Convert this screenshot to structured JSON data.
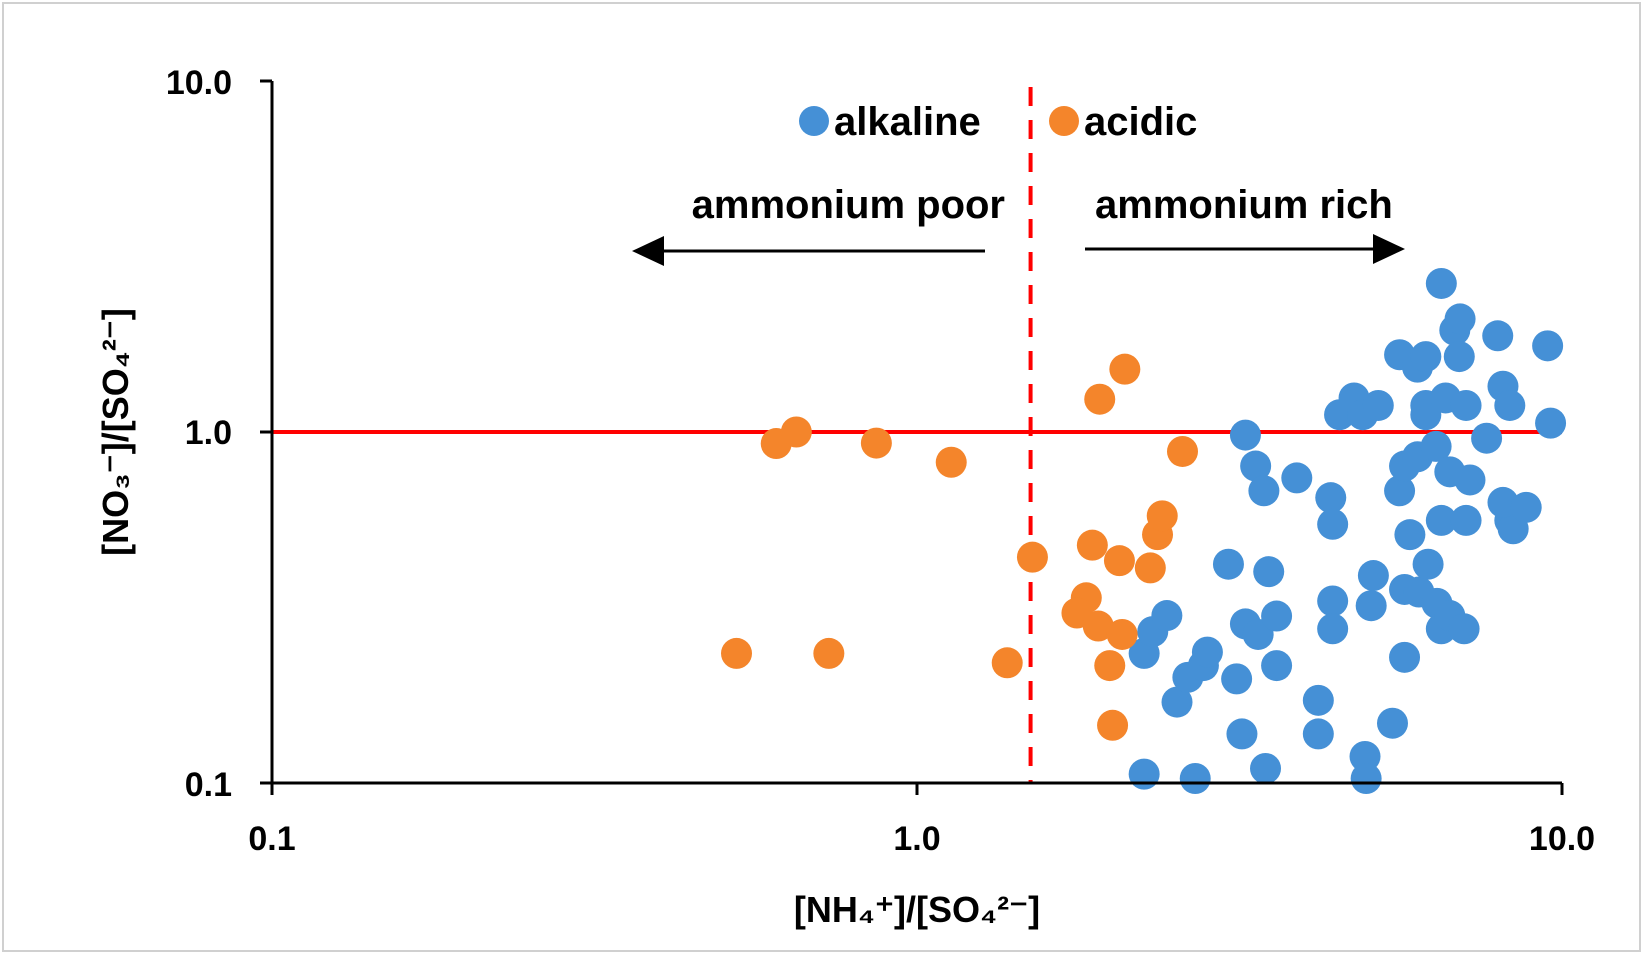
{
  "chart_data": {
    "type": "scatter",
    "title": "",
    "xlabel": "[NH₄⁺]/[SO₄²⁻]",
    "ylabel": "[NO₃⁻]/[SO₄²⁻]",
    "xscale": "log",
    "yscale": "log",
    "xlim": [
      0.1,
      10
    ],
    "ylim": [
      0.1,
      10
    ],
    "xticks": [
      "0.1",
      "1.0",
      "10.0"
    ],
    "yticks": [
      "0.1",
      "1.0",
      "10.0"
    ],
    "grid": false,
    "legend": {
      "placement": "top-center",
      "entries": [
        "alkaline",
        "acidic"
      ]
    },
    "annotations": {
      "left": "ammonium poor",
      "right": "ammonium rich"
    },
    "reference_lines": {
      "horizontal_y": 1.0,
      "vertical_x": 1.5
    },
    "colors": {
      "alkaline": "#4590d6",
      "acidic": "#f4852b",
      "reference": "#ff0000"
    },
    "series": [
      {
        "name": "alkaline",
        "points": [
          [
            2.25,
            0.106
          ],
          [
            2.7,
            0.103
          ],
          [
            2.25,
            0.234
          ],
          [
            2.32,
            0.27
          ],
          [
            2.44,
            0.3
          ],
          [
            2.53,
            0.17
          ],
          [
            2.63,
            0.2
          ],
          [
            2.78,
            0.216
          ],
          [
            2.82,
            0.236
          ],
          [
            3.04,
            0.42
          ],
          [
            3.13,
            0.198
          ],
          [
            3.19,
            0.138
          ],
          [
            3.23,
            0.284
          ],
          [
            3.38,
            0.265
          ],
          [
            3.47,
            0.11
          ],
          [
            3.51,
            0.4
          ],
          [
            3.61,
            0.299
          ],
          [
            3.61,
            0.216
          ],
          [
            3.23,
            0.98
          ],
          [
            3.35,
            0.8
          ],
          [
            3.45,
            0.68
          ],
          [
            3.88,
            0.74
          ],
          [
            4.19,
            0.172
          ],
          [
            4.19,
            0.138
          ],
          [
            4.38,
            0.65
          ],
          [
            4.41,
            0.546
          ],
          [
            4.41,
            0.33
          ],
          [
            4.41,
            0.275
          ],
          [
            4.52,
            1.12
          ],
          [
            4.76,
            1.25
          ],
          [
            4.91,
            1.12
          ],
          [
            5.19,
            1.19
          ],
          [
            4.95,
            0.119
          ],
          [
            4.97,
            0.103
          ],
          [
            5.06,
            0.32
          ],
          [
            5.1,
            0.39
          ],
          [
            5.46,
            0.148
          ],
          [
            5.6,
            1.66
          ],
          [
            5.6,
            0.68
          ],
          [
            5.7,
            0.8
          ],
          [
            5.7,
            0.228
          ],
          [
            5.81,
            0.51
          ],
          [
            5.7,
            0.356
          ],
          [
            5.97,
            1.53
          ],
          [
            6.0,
            0.35
          ],
          [
            5.97,
            0.85
          ],
          [
            6.15,
            1.64
          ],
          [
            6.15,
            1.19
          ],
          [
            6.2,
            0.42
          ],
          [
            6.15,
            1.12
          ],
          [
            6.38,
            0.91
          ],
          [
            6.4,
            0.325
          ],
          [
            6.5,
            2.65
          ],
          [
            6.5,
            0.56
          ],
          [
            6.5,
            0.275
          ],
          [
            6.6,
            1.25
          ],
          [
            6.7,
            0.3
          ],
          [
            6.7,
            0.77
          ],
          [
            6.82,
            1.95
          ],
          [
            6.95,
            2.1
          ],
          [
            6.93,
            1.64
          ],
          [
            7.1,
            1.19
          ],
          [
            7.1,
            0.56
          ],
          [
            7.2,
            0.73
          ],
          [
            7.05,
            0.275
          ],
          [
            7.64,
            0.96
          ],
          [
            7.95,
            1.88
          ],
          [
            8.1,
            1.35
          ],
          [
            8.3,
            1.19
          ],
          [
            8.3,
            0.56
          ],
          [
            8.4,
            0.53
          ],
          [
            8.1,
            0.63
          ],
          [
            8.8,
            0.61
          ],
          [
            9.5,
            1.76
          ],
          [
            9.6,
            1.06
          ]
        ]
      },
      {
        "name": "acidic",
        "points": [
          [
            0.525,
            0.234
          ],
          [
            0.605,
            0.927
          ],
          [
            0.65,
            1.0
          ],
          [
            0.73,
            0.234
          ],
          [
            0.865,
            0.93
          ],
          [
            1.13,
            0.82
          ],
          [
            1.38,
            0.22
          ],
          [
            1.51,
            0.44
          ],
          [
            1.87,
            0.476
          ],
          [
            1.83,
            0.337
          ],
          [
            1.77,
            0.305
          ],
          [
            1.91,
            0.28
          ],
          [
            1.99,
            0.216
          ],
          [
            2.01,
            0.146
          ],
          [
            2.06,
            0.43
          ],
          [
            2.08,
            0.265
          ],
          [
            1.92,
            1.24
          ],
          [
            2.1,
            1.51
          ],
          [
            2.3,
            0.41
          ],
          [
            2.36,
            0.51
          ],
          [
            2.4,
            0.577
          ],
          [
            2.58,
            0.88
          ]
        ]
      }
    ]
  }
}
